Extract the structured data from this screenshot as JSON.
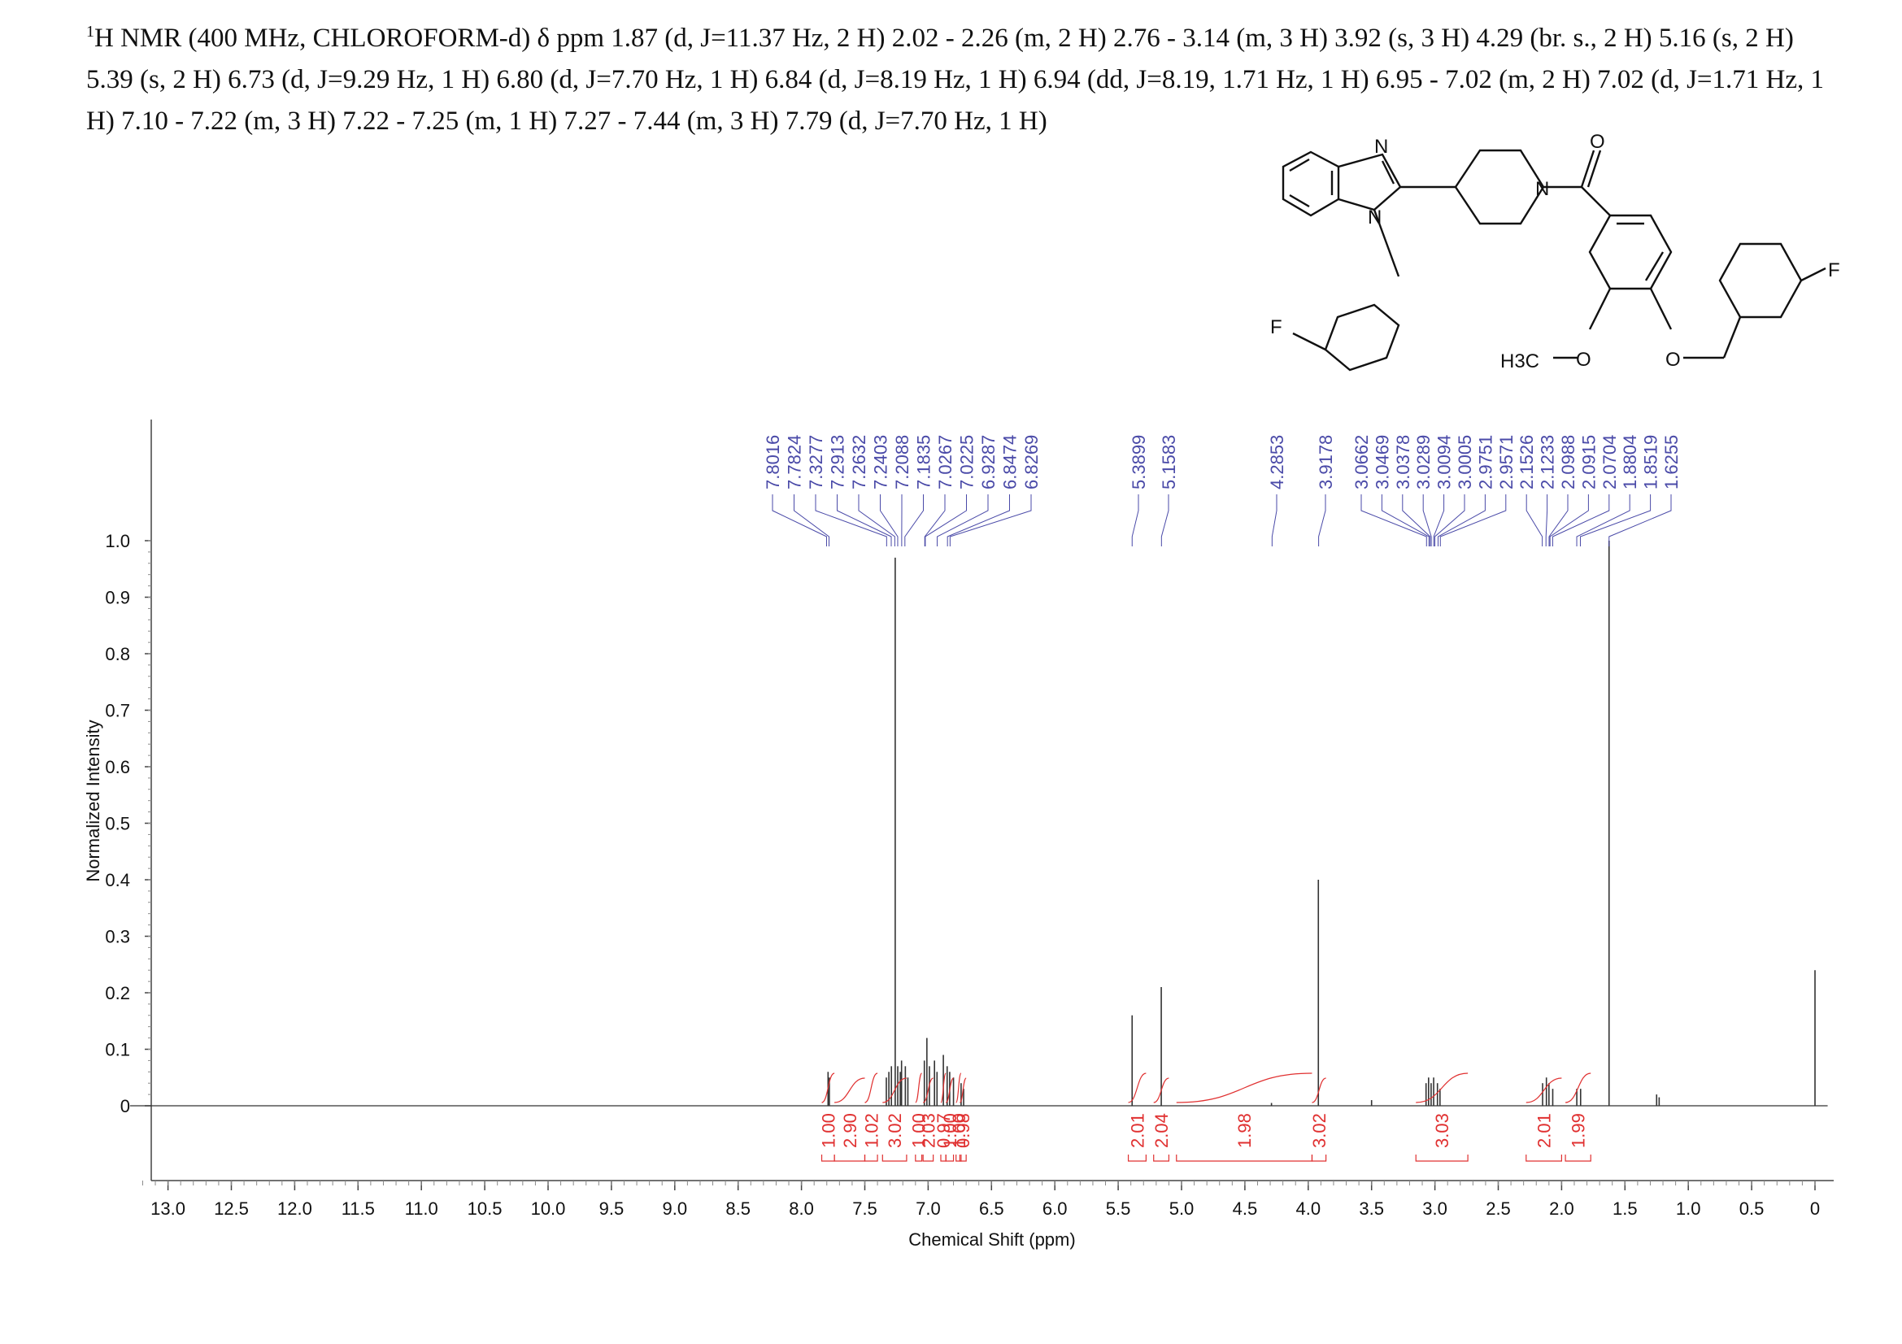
{
  "header": {
    "nucleus_mass": "1",
    "text": "H NMR (400 MHz, CHLOROFORM-d) δ ppm 1.87 (d, J=11.37 Hz, 2 H) 2.02 - 2.26 (m, 2 H) 2.76 - 3.14 (m, 3 H) 3.92 (s, 3 H) 4.29 (br. s., 2 H) 5.16 (s, 2 H) 5.39 (s, 2 H) 6.73 (d, J=9.29 Hz, 1 H) 6.80 (d, J=7.70 Hz, 1 H) 6.84 (d, J=8.19 Hz, 1 H) 6.94 (dd, J=8.19, 1.71 Hz, 1 H) 6.95 - 7.02 (m, 2 H) 7.02 (d, J=1.71 Hz, 1 H) 7.10 - 7.22 (m, 3 H) 7.22 - 7.25 (m, 1 H) 7.27 - 7.44 (m, 3 H) 7.79 (d,  J=7.70 Hz, 1 H)"
  },
  "structure": {
    "atoms": {
      "n1": "N",
      "n2": "N",
      "n3": "N",
      "o_carbonyl": "O",
      "o_methoxy": "O",
      "o_ether": "O",
      "f_left": "F",
      "f_right": "F",
      "methyl": "H3C"
    }
  },
  "colors": {
    "spectrum": "#333333",
    "peak_label": "#4a4aa8",
    "integral": "#e03030",
    "axis": "#444444"
  },
  "chart_data": {
    "type": "line",
    "xlabel": "Chemical Shift (ppm)",
    "ylabel": "Normalized Intensity",
    "xlim": [
      13.3,
      -0.1
    ],
    "ylim": [
      -0.2,
      1.0
    ],
    "x_ticks": [
      "13.0",
      "12.5",
      "12.0",
      "11.5",
      "11.0",
      "10.5",
      "10.0",
      "9.5",
      "9.0",
      "8.5",
      "8.0",
      "7.5",
      "7.0",
      "6.5",
      "6.0",
      "5.5",
      "5.0",
      "4.5",
      "4.0",
      "3.5",
      "3.0",
      "2.5",
      "2.0",
      "1.5",
      "1.0",
      "0.5",
      "0"
    ],
    "y_ticks": [
      "0",
      "0.1",
      "0.2",
      "0.3",
      "0.4",
      "0.5",
      "0.6",
      "0.7",
      "0.8",
      "0.9",
      "1.0"
    ],
    "peaks": [
      {
        "x": 7.79,
        "y": 0.06
      },
      {
        "x": 7.78,
        "y": 0.05
      },
      {
        "x": 7.33,
        "y": 0.05
      },
      {
        "x": 7.31,
        "y": 0.06
      },
      {
        "x": 7.29,
        "y": 0.07
      },
      {
        "x": 7.26,
        "y": 0.97
      },
      {
        "x": 7.24,
        "y": 0.07
      },
      {
        "x": 7.22,
        "y": 0.06
      },
      {
        "x": 7.21,
        "y": 0.08
      },
      {
        "x": 7.18,
        "y": 0.07
      },
      {
        "x": 7.16,
        "y": 0.05
      },
      {
        "x": 7.03,
        "y": 0.08
      },
      {
        "x": 7.01,
        "y": 0.12
      },
      {
        "x": 6.99,
        "y": 0.07
      },
      {
        "x": 6.95,
        "y": 0.08
      },
      {
        "x": 6.93,
        "y": 0.06
      },
      {
        "x": 6.88,
        "y": 0.09
      },
      {
        "x": 6.85,
        "y": 0.07
      },
      {
        "x": 6.83,
        "y": 0.06
      },
      {
        "x": 6.8,
        "y": 0.05
      },
      {
        "x": 6.74,
        "y": 0.04
      },
      {
        "x": 6.72,
        "y": 0.03
      },
      {
        "x": 5.39,
        "y": 0.16
      },
      {
        "x": 5.16,
        "y": 0.21
      },
      {
        "x": 4.29,
        "y": 0.005
      },
      {
        "x": 3.92,
        "y": 0.4
      },
      {
        "x": 3.5,
        "y": 0.01
      },
      {
        "x": 3.07,
        "y": 0.04
      },
      {
        "x": 3.05,
        "y": 0.05
      },
      {
        "x": 3.03,
        "y": 0.04
      },
      {
        "x": 3.01,
        "y": 0.05
      },
      {
        "x": 2.98,
        "y": 0.04
      },
      {
        "x": 2.96,
        "y": 0.03
      },
      {
        "x": 2.15,
        "y": 0.04
      },
      {
        "x": 2.12,
        "y": 0.05
      },
      {
        "x": 2.1,
        "y": 0.04
      },
      {
        "x": 2.07,
        "y": 0.03
      },
      {
        "x": 1.88,
        "y": 0.03
      },
      {
        "x": 1.85,
        "y": 0.03
      },
      {
        "x": 1.6255,
        "y": 1.0
      },
      {
        "x": 1.25,
        "y": 0.02
      },
      {
        "x": 1.23,
        "y": 0.015
      },
      {
        "x": 0.0,
        "y": 0.24
      }
    ],
    "peak_labels": [
      "7.8016",
      "7.7824",
      "7.3277",
      "7.2913",
      "7.2632",
      "7.2403",
      "7.2088",
      "7.1835",
      "7.0267",
      "7.0225",
      "6.9287",
      "6.8474",
      "6.8269",
      "5.3899",
      "5.1583",
      "4.2853",
      "3.9178",
      "3.0662",
      "3.0469",
      "3.0378",
      "3.0289",
      "3.0094",
      "3.0005",
      "2.9751",
      "2.9571",
      "2.1526",
      "2.1233",
      "2.0988",
      "2.0915",
      "2.0704",
      "1.8804",
      "1.8519",
      "1.6255"
    ],
    "integrals": [
      {
        "from": 7.84,
        "to": 7.74,
        "value": "1.00"
      },
      {
        "from": 7.74,
        "to": 7.5,
        "value": "2.90"
      },
      {
        "from": 7.5,
        "to": 7.4,
        "value": "1.02"
      },
      {
        "from": 7.36,
        "to": 7.17,
        "value": "3.02"
      },
      {
        "from": 7.1,
        "to": 7.05,
        "value": "1.00"
      },
      {
        "from": 7.04,
        "to": 6.96,
        "value": "2.03"
      },
      {
        "from": 6.9,
        "to": 6.86,
        "value": "0.97"
      },
      {
        "from": 6.86,
        "to": 6.8,
        "value": "1.00"
      },
      {
        "from": 6.78,
        "to": 6.74,
        "value": "1.00"
      },
      {
        "from": 6.75,
        "to": 6.7,
        "value": "0.98"
      },
      {
        "from": 5.42,
        "to": 5.28,
        "value": "2.01"
      },
      {
        "from": 5.22,
        "to": 5.1,
        "value": "2.04"
      },
      {
        "from": 5.04,
        "to": 3.97,
        "value": "1.98"
      },
      {
        "from": 3.97,
        "to": 3.86,
        "value": "3.02"
      },
      {
        "from": 3.15,
        "to": 2.74,
        "value": "3.03"
      },
      {
        "from": 2.28,
        "to": 2.0,
        "value": "2.01"
      },
      {
        "from": 1.97,
        "to": 1.77,
        "value": "1.99"
      }
    ]
  }
}
